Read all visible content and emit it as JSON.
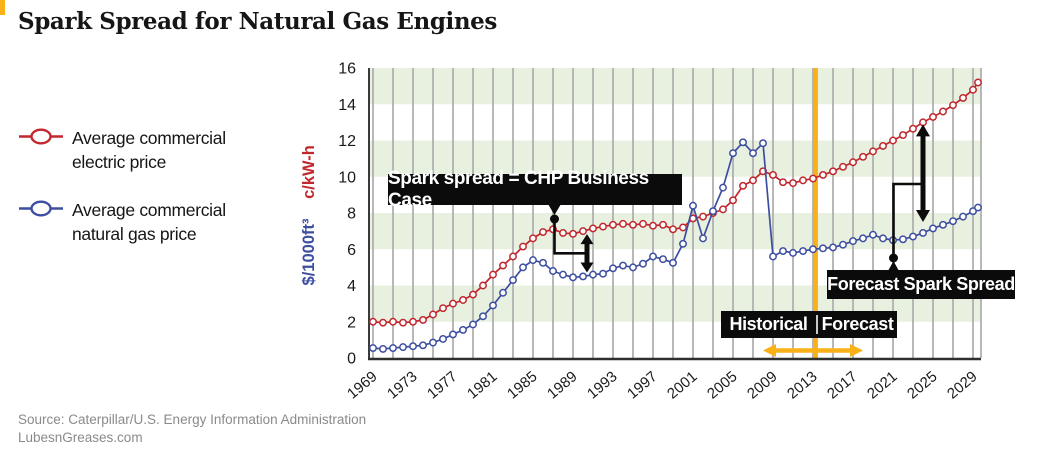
{
  "title": "Spark Spread for Natural Gas Engines",
  "source": {
    "line1": "Source: Caterpillar/U.S. Energy Information Administration",
    "line2": "LubesnGreases.com"
  },
  "legend": {
    "items": [
      {
        "name": "electric",
        "line1": "Average commercial",
        "line2": "electric price",
        "color": "#C1272D"
      },
      {
        "name": "gas",
        "line1": "Average commercial",
        "line2": "natural gas price",
        "color": "#3D4EA1"
      }
    ]
  },
  "annotations": {
    "spark_spread_label": "Spark spread = CHP Business Case",
    "forecast_spread_label": "Forecast Spark Spread",
    "historical_label": "Historical",
    "forecast_label": "Forecast",
    "divider_year": 2013,
    "historic_spread_arrow_year": 1990,
    "forecast_spread_arrow_year": 2024,
    "timeline_arrow_years": [
      2008,
      2018
    ],
    "accent_color": "#F9B117",
    "annotation_bg": "#0B0B0B"
  },
  "chart_data": {
    "type": "line",
    "title": "Spark Spread for Natural Gas Engines",
    "ylabel_electric": "c/kW-h",
    "ylabel_gas": "$/1000ft³",
    "ylim": [
      0,
      16
    ],
    "yticks": [
      0,
      2,
      4,
      6,
      8,
      10,
      12,
      14,
      16
    ],
    "xticks": [
      1969,
      1973,
      1977,
      1981,
      1985,
      1989,
      1993,
      1997,
      2001,
      2005,
      2009,
      2013,
      2017,
      2021,
      2025,
      2029
    ],
    "gridline_step": 2,
    "grid_color": "#B0B0B0",
    "band_ranges": [
      [
        2,
        4
      ],
      [
        6,
        8
      ],
      [
        10,
        12
      ],
      [
        14,
        16
      ]
    ],
    "band_color": "#E8F0DF",
    "axis_color": "#3A3A3A",
    "tick_label_color": "#1A1A1A",
    "x": [
      1969,
      1970,
      1971,
      1972,
      1973,
      1974,
      1975,
      1976,
      1977,
      1978,
      1979,
      1980,
      1981,
      1982,
      1983,
      1984,
      1985,
      1986,
      1987,
      1988,
      1989,
      1990,
      1991,
      1992,
      1993,
      1994,
      1995,
      1996,
      1997,
      1998,
      1999,
      2000,
      2001,
      2002,
      2003,
      2004,
      2005,
      2006,
      2007,
      2008,
      2009,
      2010,
      2011,
      2012,
      2013,
      2014,
      2015,
      2016,
      2017,
      2018,
      2019,
      2020,
      2021,
      2022,
      2023,
      2024,
      2025,
      2026,
      2027,
      2028,
      2029,
      2030
    ],
    "series": [
      {
        "name": "Average commercial electric price",
        "unit": "c/kW-h",
        "color": "#C1272D",
        "values": [
          2.0,
          1.95,
          2.0,
          1.95,
          2.0,
          2.1,
          2.4,
          2.75,
          3.0,
          3.2,
          3.5,
          4.0,
          4.6,
          5.1,
          5.6,
          6.15,
          6.6,
          6.95,
          7.1,
          6.9,
          6.85,
          7.0,
          7.15,
          7.25,
          7.35,
          7.4,
          7.35,
          7.4,
          7.3,
          7.35,
          7.1,
          7.2,
          7.7,
          7.8,
          8.0,
          8.2,
          8.7,
          9.5,
          9.8,
          10.3,
          10.1,
          9.7,
          9.65,
          9.8,
          9.9,
          10.1,
          10.3,
          10.55,
          10.8,
          11.1,
          11.4,
          11.7,
          12.0,
          12.3,
          12.65,
          13.0,
          13.3,
          13.6,
          13.95,
          14.35,
          14.8,
          15.2
        ]
      },
      {
        "name": "Average commercial natural gas price",
        "unit": "$/1000ft³",
        "color": "#3D4EA1",
        "values": [
          0.55,
          0.5,
          0.55,
          0.6,
          0.65,
          0.7,
          0.85,
          1.05,
          1.3,
          1.55,
          1.85,
          2.3,
          2.9,
          3.6,
          4.3,
          5.0,
          5.4,
          5.25,
          4.8,
          4.6,
          4.45,
          4.5,
          4.6,
          4.65,
          4.95,
          5.1,
          5.0,
          5.2,
          5.6,
          5.45,
          5.25,
          6.3,
          8.4,
          6.6,
          8.1,
          9.4,
          11.3,
          11.9,
          11.3,
          11.85,
          5.6,
          5.9,
          5.8,
          5.9,
          6.0,
          6.05,
          6.1,
          6.25,
          6.45,
          6.6,
          6.8,
          6.6,
          6.5,
          6.55,
          6.7,
          6.9,
          7.15,
          7.35,
          7.55,
          7.8,
          8.1,
          8.3
        ]
      }
    ]
  }
}
